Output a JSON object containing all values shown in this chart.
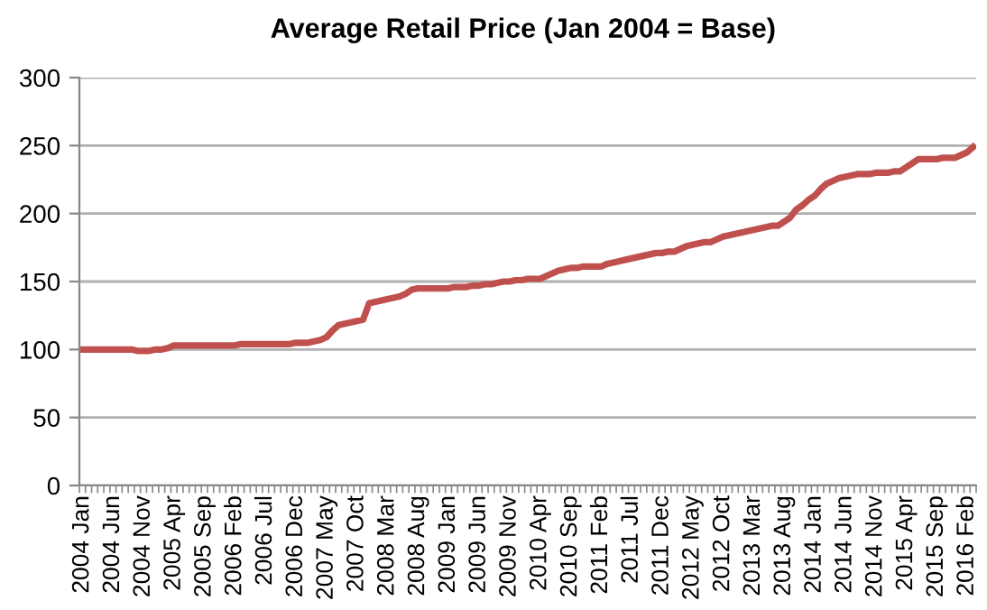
{
  "chart_data": {
    "type": "line",
    "title": "Average Retail Price (Jan 2004 = Base)",
    "categories": [
      "2004 Jan",
      null,
      null,
      null,
      null,
      "2004 Jun",
      null,
      null,
      null,
      null,
      "2004 Nov",
      null,
      null,
      null,
      null,
      "2005 Apr",
      null,
      null,
      null,
      null,
      "2005 Sep",
      null,
      null,
      null,
      null,
      "2006 Feb",
      null,
      null,
      null,
      null,
      "2006 Jul",
      null,
      null,
      null,
      null,
      "2006 Dec",
      null,
      null,
      null,
      null,
      "2007 May",
      null,
      null,
      null,
      null,
      "2007 Oct",
      null,
      null,
      null,
      null,
      "2008 Mar",
      null,
      null,
      null,
      null,
      "2008 Aug",
      null,
      null,
      null,
      null,
      "2009 Jan",
      null,
      null,
      null,
      null,
      "2009 Jun",
      null,
      null,
      null,
      null,
      "2009 Nov",
      null,
      null,
      null,
      null,
      "2010 Apr",
      null,
      null,
      null,
      null,
      "2010 Sep",
      null,
      null,
      null,
      null,
      "2011 Feb",
      null,
      null,
      null,
      null,
      "2011 Jul",
      null,
      null,
      null,
      null,
      "2011 Dec",
      null,
      null,
      null,
      null,
      "2012 May",
      null,
      null,
      null,
      null,
      "2012 Oct",
      null,
      null,
      null,
      null,
      "2013 Mar",
      null,
      null,
      null,
      null,
      "2013 Aug",
      null,
      null,
      null,
      null,
      "2014 Jan",
      null,
      null,
      null,
      null,
      "2014 Jun",
      null,
      null,
      null,
      null,
      "2014 Nov",
      null,
      null,
      null,
      null,
      "2015 Apr",
      null,
      null,
      null,
      null,
      "2015 Sep",
      null,
      null,
      null,
      null,
      "2016 Feb",
      null
    ],
    "series": [
      {
        "color": "#c0504d",
        "values": [
          100,
          100,
          100,
          100,
          100,
          100,
          100,
          100,
          100,
          99,
          99,
          99,
          100,
          100,
          101,
          103,
          103,
          103,
          103,
          103,
          103,
          103,
          103,
          103,
          103,
          103,
          104,
          104,
          104,
          104,
          104,
          104,
          104,
          104,
          104,
          105,
          105,
          105,
          106,
          107,
          109,
          114,
          118,
          119,
          120,
          121,
          122,
          134,
          135,
          136,
          137,
          138,
          139,
          141,
          144,
          145,
          145,
          145,
          145,
          145,
          145,
          146,
          146,
          146,
          147,
          147,
          148,
          148,
          149,
          150,
          150,
          151,
          151,
          152,
          152,
          152,
          154,
          156,
          158,
          159,
          160,
          160,
          161,
          161,
          161,
          161,
          163,
          164,
          165,
          166,
          167,
          168,
          169,
          170,
          171,
          171,
          172,
          172,
          174,
          176,
          177,
          178,
          179,
          179,
          181,
          183,
          184,
          185,
          186,
          187,
          188,
          189,
          190,
          191,
          191,
          194,
          197,
          203,
          206,
          210,
          213,
          218,
          222,
          224,
          226,
          227,
          228,
          229,
          229,
          229,
          230,
          230,
          230,
          231,
          231,
          234,
          237,
          240,
          240,
          240,
          240,
          241,
          241,
          241,
          243,
          245,
          249
        ]
      }
    ],
    "ylim": [
      0,
      300
    ],
    "yticks": [
      0,
      50,
      100,
      150,
      200,
      250,
      300
    ],
    "grid": "y",
    "legend": false,
    "marker": "none",
    "line_style": "solid"
  }
}
